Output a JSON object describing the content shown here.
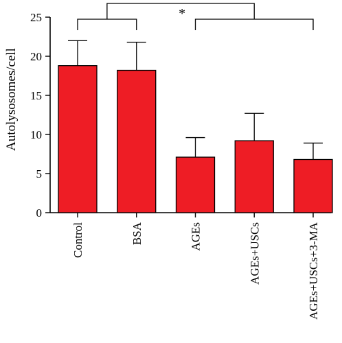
{
  "chart_data": {
    "type": "bar",
    "title": "",
    "xlabel": "",
    "ylabel": "Autolysosomes/cell",
    "ylim": [
      0,
      25
    ],
    "yticks": [
      0,
      5,
      10,
      15,
      20,
      25
    ],
    "categories": [
      "Control",
      "BSA",
      "AGEs",
      "AGEs+USCs",
      "AGEs+USCs+3-MA"
    ],
    "values": [
      18.8,
      18.2,
      7.1,
      9.2,
      6.8
    ],
    "errors": [
      3.2,
      3.6,
      2.5,
      3.5,
      2.1
    ],
    "bar_color": "#ee1d25",
    "significance": {
      "label": "*",
      "groups": [
        {
          "categories": [
            "Control",
            "BSA"
          ]
        },
        {
          "categories": [
            "AGEs",
            "AGEs+USCs",
            "AGEs+USCs+3-MA"
          ]
        }
      ]
    },
    "grid": false,
    "legend": "none"
  }
}
